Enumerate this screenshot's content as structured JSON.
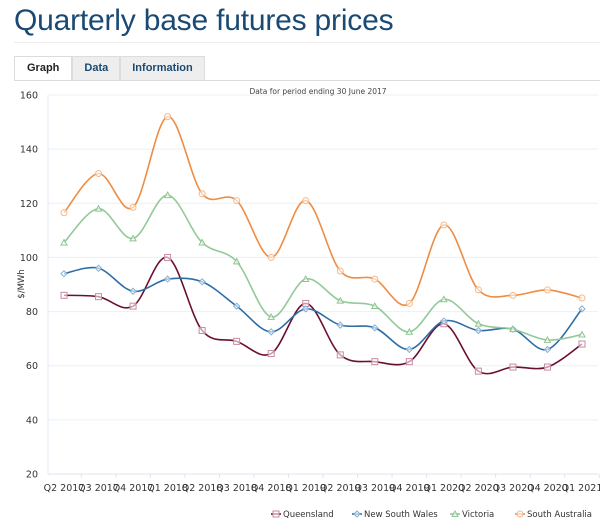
{
  "page": {
    "title": "Quarterly base futures prices",
    "tabs": [
      {
        "label": "Graph",
        "active": true
      },
      {
        "label": "Data",
        "active": false
      },
      {
        "label": "Information",
        "active": false
      }
    ]
  },
  "chart_data": {
    "type": "line",
    "title": "",
    "subtitle": "Data for period ending 30 June 2017",
    "xlabel": "",
    "ylabel": "$/MWh",
    "ylim": [
      20,
      160
    ],
    "yticks": [
      20,
      40,
      60,
      80,
      100,
      120,
      140,
      160
    ],
    "grid": true,
    "smooth": true,
    "legend_position": "bottom-right",
    "categories": [
      "Q2 2017",
      "Q3 2017",
      "Q4 2017",
      "Q1 2018",
      "Q2 2018",
      "Q3 2018",
      "Q4 2018",
      "Q1 2019",
      "Q2 2019",
      "Q3 2019",
      "Q4 2019",
      "Q1 2020",
      "Q2 2020",
      "Q3 2020",
      "Q4 2020",
      "Q1 2021"
    ],
    "series": [
      {
        "name": "Queensland",
        "color": "#6b0f2f",
        "marker": "square",
        "values": [
          86,
          85.5,
          82,
          100,
          73,
          69,
          64.5,
          83,
          64,
          61.5,
          61.5,
          75.5,
          58,
          59.5,
          59.5,
          68
        ]
      },
      {
        "name": "New South Wales",
        "color": "#2e6da4",
        "marker": "diamond",
        "values": [
          94,
          96,
          87.5,
          92,
          91,
          82,
          72.5,
          81,
          75,
          74,
          66,
          76.5,
          73,
          73.5,
          66,
          81
        ]
      },
      {
        "name": "Victoria",
        "color": "#94c99a",
        "marker": "triangle",
        "values": [
          105.5,
          118,
          107,
          123,
          105.5,
          98.5,
          78,
          92,
          84,
          82,
          72.5,
          84.5,
          75.5,
          73.5,
          69.5,
          71.5
        ]
      },
      {
        "name": "South Australia",
        "color": "#ee8c43",
        "marker": "circle",
        "values": [
          116.5,
          131,
          118.5,
          152,
          123.5,
          121,
          100,
          121,
          95,
          92,
          83,
          112,
          88,
          86,
          88,
          85
        ]
      }
    ]
  }
}
